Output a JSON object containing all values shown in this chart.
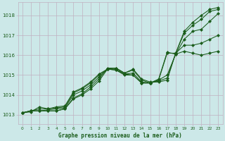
{
  "title": "Graphe pression niveau de la mer (hPa)",
  "background_color": "#cce8e8",
  "grid_color": "#c0b0c0",
  "line_color": "#1a5c1a",
  "marker_color": "#1a5c1a",
  "ylabel_ticks": [
    1013,
    1014,
    1015,
    1016,
    1017,
    1018
  ],
  "xlim": [
    -0.5,
    23.5
  ],
  "ylim": [
    1012.55,
    1018.65
  ],
  "lines": [
    {
      "x": [
        0,
        1,
        2,
        3,
        4,
        5,
        6,
        7,
        8,
        9,
        10,
        11,
        12,
        13,
        14,
        15,
        16,
        17,
        18,
        19,
        20,
        21,
        22,
        23
      ],
      "y": [
        1013.1,
        1013.2,
        1013.2,
        1013.2,
        1013.2,
        1013.3,
        1013.8,
        1014.0,
        1014.3,
        1014.7,
        1015.3,
        1015.35,
        1015.1,
        1015.3,
        1014.8,
        1014.65,
        1014.65,
        1014.75,
        1016.1,
        1017.2,
        1017.65,
        1018.0,
        1018.3,
        1018.4
      ]
    },
    {
      "x": [
        0,
        1,
        2,
        3,
        4,
        5,
        6,
        7,
        8,
        9,
        10,
        11,
        12,
        13,
        14,
        15,
        16,
        17,
        18,
        19,
        20,
        21,
        22,
        23
      ],
      "y": [
        1013.1,
        1013.2,
        1013.2,
        1013.2,
        1013.2,
        1013.3,
        1013.85,
        1014.05,
        1014.4,
        1014.8,
        1015.35,
        1015.35,
        1015.1,
        1015.25,
        1014.75,
        1014.6,
        1014.7,
        1014.85,
        1016.1,
        1017.1,
        1017.5,
        1017.8,
        1018.2,
        1018.3
      ]
    },
    {
      "x": [
        0,
        1,
        2,
        3,
        4,
        5,
        6,
        7,
        8,
        9,
        10,
        11,
        12,
        13,
        14,
        15,
        16,
        17,
        18,
        19,
        20,
        21,
        22,
        23
      ],
      "y": [
        1013.1,
        1013.2,
        1013.2,
        1013.25,
        1013.3,
        1013.35,
        1014.0,
        1014.2,
        1014.5,
        1014.9,
        1015.3,
        1015.3,
        1015.05,
        1015.1,
        1014.65,
        1014.6,
        1014.75,
        1015.0,
        1016.05,
        1016.8,
        1017.2,
        1017.3,
        1017.7,
        1018.1
      ]
    },
    {
      "x": [
        0,
        1,
        2,
        3,
        4,
        5,
        6,
        7,
        8,
        9,
        10,
        11,
        12,
        13,
        14,
        15,
        16,
        17,
        18,
        19,
        20,
        21,
        22,
        23
      ],
      "y": [
        1013.1,
        1013.2,
        1013.3,
        1013.3,
        1013.35,
        1013.4,
        1014.1,
        1014.3,
        1014.6,
        1015.0,
        1015.3,
        1015.25,
        1015.0,
        1015.0,
        1014.6,
        1014.6,
        1014.75,
        1016.1,
        1016.1,
        1016.5,
        1016.5,
        1016.6,
        1016.8,
        1017.0
      ]
    },
    {
      "x": [
        0,
        1,
        2,
        3,
        4,
        5,
        6,
        7,
        8,
        9,
        10,
        11,
        12,
        13,
        14,
        15,
        16,
        17,
        18,
        19,
        20,
        21,
        22,
        23
      ],
      "y": [
        1013.1,
        1013.15,
        1013.4,
        1013.3,
        1013.4,
        1013.45,
        1014.15,
        1014.35,
        1014.65,
        1015.05,
        1015.3,
        1015.25,
        1015.05,
        1015.0,
        1014.6,
        1014.6,
        1014.8,
        1016.15,
        1016.05,
        1016.2,
        1016.1,
        1016.0,
        1016.1,
        1016.2
      ]
    }
  ],
  "xticks": [
    0,
    1,
    2,
    3,
    4,
    5,
    6,
    7,
    8,
    9,
    10,
    11,
    12,
    13,
    14,
    15,
    16,
    17,
    18,
    19,
    20,
    21,
    22,
    23
  ]
}
